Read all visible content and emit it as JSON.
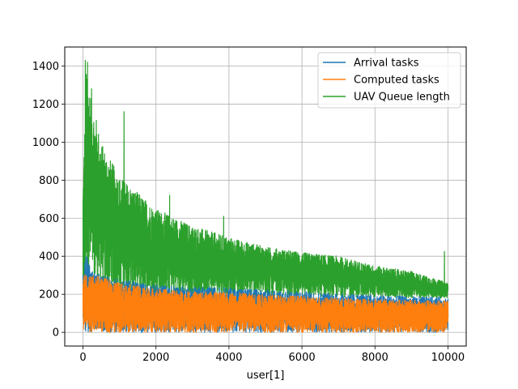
{
  "chart_data": {
    "type": "line",
    "title": "",
    "xlabel": "user[1]",
    "ylabel": "",
    "xlim": [
      -500,
      10500
    ],
    "ylim": [
      -72,
      1500
    ],
    "xticks": [
      0,
      2000,
      4000,
      6000,
      8000,
      10000
    ],
    "yticks": [
      0,
      200,
      400,
      600,
      800,
      1000,
      1200,
      1400
    ],
    "grid": true,
    "legend_position": "top-right",
    "series": [
      {
        "name": "Arrival tasks",
        "color": "#1f77b4",
        "envelope_x": [
          0,
          100,
          200,
          500,
          1000,
          2000,
          3000,
          4000,
          5000,
          6000,
          7000,
          8000,
          9000,
          10000
        ],
        "envelope_low": [
          0,
          0,
          0,
          0,
          0,
          0,
          0,
          0,
          0,
          0,
          0,
          0,
          0,
          0
        ],
        "envelope_high": [
          310,
          430,
          330,
          300,
          280,
          250,
          240,
          235,
          225,
          215,
          205,
          195,
          190,
          185
        ]
      },
      {
        "name": "Computed tasks",
        "color": "#ff7f0e",
        "envelope_x": [
          0,
          100,
          200,
          500,
          1000,
          2000,
          3000,
          4000,
          5000,
          6000,
          7000,
          8000,
          9000,
          10000
        ],
        "envelope_low": [
          0,
          0,
          0,
          0,
          0,
          0,
          0,
          0,
          0,
          0,
          0,
          0,
          0,
          0
        ],
        "envelope_high": [
          300,
          305,
          305,
          290,
          260,
          230,
          215,
          210,
          200,
          190,
          180,
          175,
          170,
          165
        ]
      },
      {
        "name": "UAV Queue length",
        "color": "#2ca02c",
        "envelope_x": [
          0,
          100,
          200,
          500,
          1000,
          2000,
          3000,
          4000,
          5000,
          6000,
          7000,
          8000,
          9000,
          10000
        ],
        "envelope_low": [
          0,
          300,
          260,
          230,
          210,
          200,
          200,
          200,
          195,
          190,
          185,
          185,
          180,
          180
        ],
        "envelope_high": [
          820,
          1430,
          1280,
          1000,
          820,
          650,
          560,
          500,
          450,
          420,
          400,
          350,
          320,
          260
        ],
        "peaks": [
          [
            60,
            1430
          ],
          [
            120,
            1420
          ],
          [
            230,
            1280
          ],
          [
            1120,
            1160
          ],
          [
            2370,
            720
          ],
          [
            3850,
            610
          ],
          [
            9900,
            425
          ]
        ]
      }
    ]
  }
}
